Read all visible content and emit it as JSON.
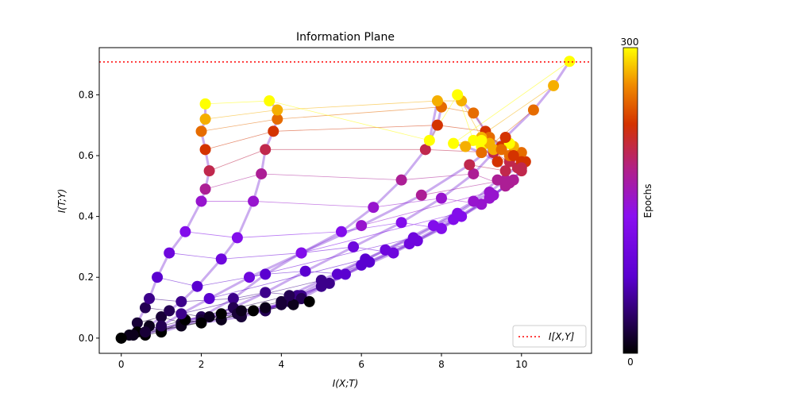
{
  "chart_data": {
    "type": "scatter",
    "title": "Information Plane",
    "xlabel": "I(X;T)",
    "ylabel": "I(T;Y)",
    "xlim": [
      -0.55,
      11.75
    ],
    "ylim": [
      -0.05,
      0.955
    ],
    "x_ticks": [
      "0",
      "2",
      "4",
      "6",
      "8",
      "10"
    ],
    "y_ticks": [
      "0.0",
      "0.2",
      "0.4",
      "0.6",
      "0.8"
    ],
    "x_tick_values": [
      0,
      2,
      4,
      6,
      8,
      10
    ],
    "y_tick_values": [
      0.0,
      0.2,
      0.4,
      0.6,
      0.8
    ],
    "reference_line": {
      "label": "I[X,Y]",
      "y": 0.908,
      "color": "#ff0000",
      "style": "dotted"
    },
    "legend": {
      "entries": [
        "I[X,Y]"
      ],
      "placement": "lower-right"
    },
    "colorbar": {
      "label": "Epochs",
      "min_label": "0",
      "max_label": "300",
      "min": 0,
      "max": 300,
      "colormap": "gnuplot"
    },
    "grid": false,
    "epochs_sampled": [
      0,
      10,
      20,
      30,
      50,
      75,
      100,
      125,
      150,
      175,
      200,
      225,
      250,
      275,
      300
    ],
    "series": [
      {
        "x": [
          0.0,
          0.2,
          0.4,
          0.6,
          0.7,
          0.9,
          1.2,
          1.6,
          2.0,
          2.1,
          2.2,
          2.1,
          2.0,
          2.1,
          2.1
        ],
        "y": [
          0.0,
          0.01,
          0.05,
          0.1,
          0.13,
          0.2,
          0.28,
          0.35,
          0.45,
          0.49,
          0.55,
          0.62,
          0.68,
          0.72,
          0.77
        ]
      },
      {
        "x": [
          0.4,
          0.7,
          1.0,
          1.2,
          1.5,
          1.9,
          2.5,
          2.9,
          3.3,
          3.5,
          3.6,
          3.8,
          3.9,
          3.9,
          3.7
        ],
        "y": [
          0.02,
          0.04,
          0.07,
          0.09,
          0.12,
          0.17,
          0.26,
          0.33,
          0.45,
          0.54,
          0.62,
          0.68,
          0.72,
          0.75,
          0.78
        ]
      },
      {
        "x": [
          0.6,
          1.0,
          1.5,
          2.0,
          2.8,
          3.6,
          4.5,
          5.5,
          6.3,
          7.0,
          7.6,
          7.9,
          8.0,
          7.9,
          7.7
        ],
        "y": [
          0.01,
          0.03,
          0.05,
          0.07,
          0.13,
          0.21,
          0.28,
          0.35,
          0.43,
          0.52,
          0.62,
          0.7,
          0.76,
          0.78,
          0.65
        ]
      },
      {
        "x": [
          1.0,
          1.5,
          2.0,
          2.8,
          3.6,
          4.6,
          5.8,
          7.0,
          8.0,
          8.8,
          9.3,
          9.1,
          8.8,
          8.5,
          8.4
        ],
        "y": [
          0.02,
          0.04,
          0.06,
          0.1,
          0.15,
          0.22,
          0.3,
          0.38,
          0.46,
          0.54,
          0.61,
          0.68,
          0.74,
          0.78,
          0.8
        ]
      },
      {
        "x": [
          1.6,
          2.2,
          2.9,
          3.6,
          4.5,
          5.6,
          6.8,
          8.0,
          9.0,
          9.6,
          9.7,
          9.5,
          9.2,
          9.0,
          8.8
        ],
        "y": [
          0.06,
          0.07,
          0.08,
          0.09,
          0.14,
          0.21,
          0.28,
          0.36,
          0.44,
          0.5,
          0.58,
          0.63,
          0.66,
          0.66,
          0.65
        ]
      },
      {
        "x": [
          2.0,
          2.5,
          3.0,
          3.6,
          4.4,
          5.4,
          6.6,
          7.8,
          8.8,
          9.4,
          9.9,
          10.1,
          10.0,
          9.8,
          9.7
        ],
        "y": [
          0.05,
          0.06,
          0.07,
          0.09,
          0.14,
          0.21,
          0.29,
          0.37,
          0.45,
          0.52,
          0.56,
          0.58,
          0.61,
          0.63,
          0.64
        ]
      },
      {
        "x": [
          2.5,
          3.0,
          3.6,
          4.2,
          5.0,
          6.0,
          7.2,
          8.3,
          9.2,
          9.7,
          10.0,
          10.0,
          9.7,
          9.3,
          9.0
        ],
        "y": [
          0.08,
          0.09,
          0.1,
          0.12,
          0.17,
          0.24,
          0.31,
          0.39,
          0.46,
          0.51,
          0.55,
          0.58,
          0.6,
          0.62,
          0.63
        ]
      },
      {
        "x": [
          3.3,
          3.6,
          4.0,
          4.5,
          5.2,
          6.2,
          7.4,
          8.5,
          9.3,
          9.8,
          10.0,
          9.8,
          9.5,
          9.2,
          9.0
        ],
        "y": [
          0.09,
          0.1,
          0.11,
          0.13,
          0.18,
          0.25,
          0.32,
          0.4,
          0.47,
          0.52,
          0.56,
          0.6,
          0.62,
          0.64,
          0.65
        ]
      },
      {
        "x": [
          4.7,
          4.3,
          4.0,
          4.2,
          5.0,
          6.1,
          7.3,
          8.4,
          9.2,
          9.6,
          9.6,
          9.4,
          9.0,
          8.6,
          8.3
        ],
        "y": [
          0.12,
          0.11,
          0.12,
          0.14,
          0.19,
          0.26,
          0.33,
          0.41,
          0.48,
          0.52,
          0.55,
          0.58,
          0.61,
          0.63,
          0.64
        ]
      },
      {
        "x": [
          0.0,
          0.3,
          0.6,
          1.0,
          1.5,
          2.2,
          3.2,
          4.5,
          6.0,
          7.5,
          8.7,
          9.6,
          10.3,
          10.8,
          11.2
        ],
        "y": [
          0.0,
          0.01,
          0.02,
          0.04,
          0.08,
          0.13,
          0.2,
          0.28,
          0.37,
          0.47,
          0.57,
          0.66,
          0.75,
          0.83,
          0.91
        ]
      }
    ]
  }
}
